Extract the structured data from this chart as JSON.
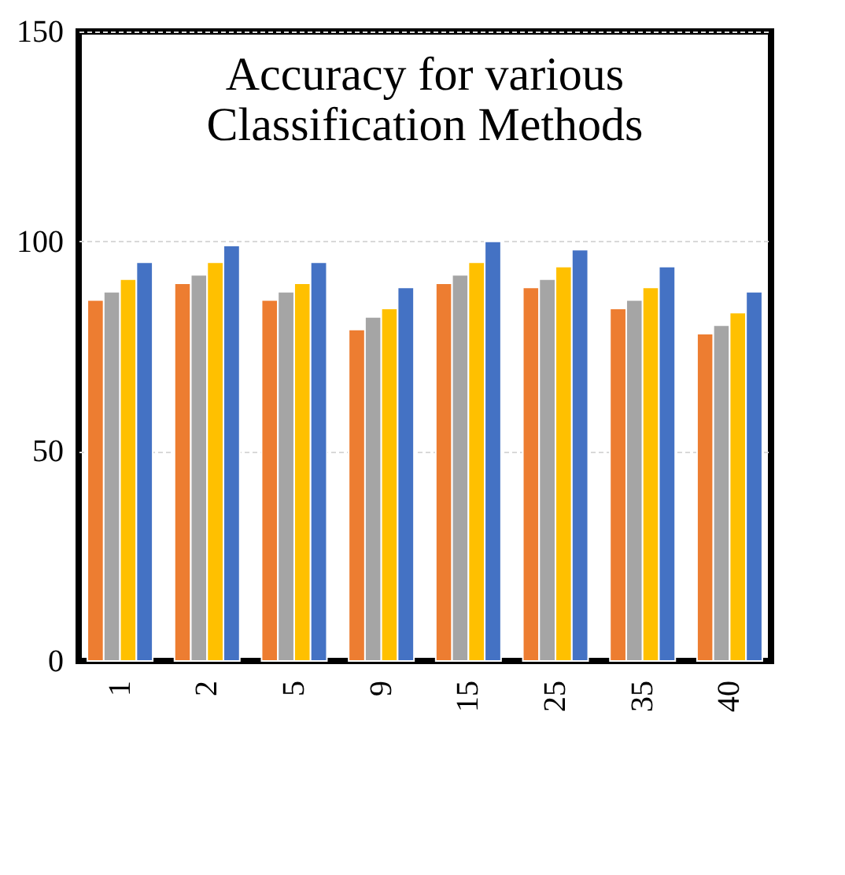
{
  "chart_data": {
    "type": "bar",
    "title": [
      "Accuracy  for various",
      "Classification  Methods"
    ],
    "categories": [
      "1",
      "2",
      "5",
      "9",
      "15",
      "25",
      "35",
      "40"
    ],
    "series": [
      {
        "color": "#ed7d31",
        "values": [
          86,
          90,
          86,
          79,
          90,
          89,
          84,
          78
        ]
      },
      {
        "color": "#a5a5a5",
        "values": [
          88,
          92,
          88,
          82,
          92,
          91,
          86,
          80
        ]
      },
      {
        "color": "#ffc000",
        "values": [
          91,
          95,
          90,
          84,
          95,
          94,
          89,
          83
        ]
      },
      {
        "color": "#4472c4",
        "values": [
          95,
          99,
          95,
          89,
          100,
          98,
          94,
          88
        ]
      }
    ],
    "ylim": [
      0,
      150
    ],
    "yticks": [
      0,
      50,
      100,
      150
    ],
    "grid": "y",
    "legend": false
  }
}
